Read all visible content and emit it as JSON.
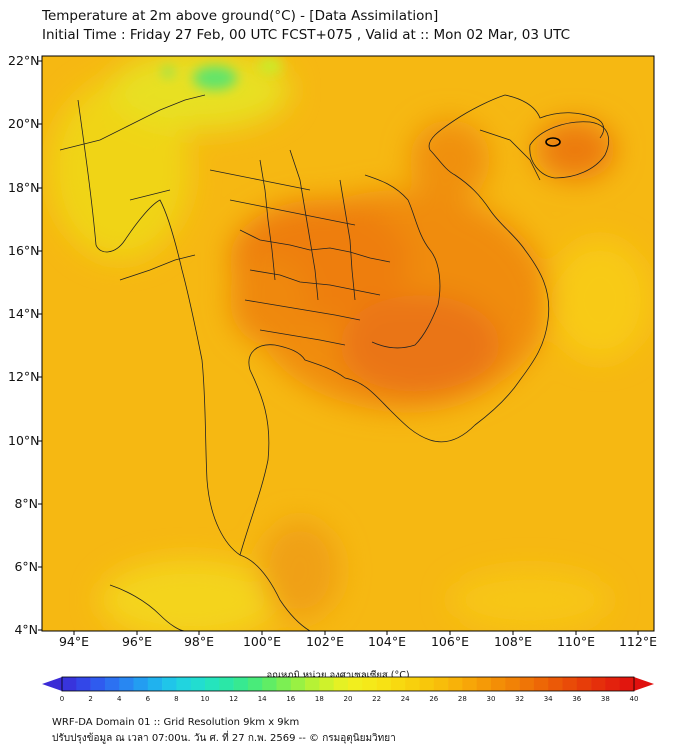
{
  "title": {
    "line1": "Temperature at 2m above ground(°C) - [Data Assimilation]",
    "line2": "Initial Time : Friday 27 Feb, 00 UTC FCST+075 , Valid at :: Mon 02 Mar, 03 UTC"
  },
  "map": {
    "lat_labels": [
      "22°N",
      "20°N",
      "18°N",
      "16°N",
      "14°N",
      "12°N",
      "10°N",
      "8°N",
      "6°N",
      "4°N"
    ],
    "lon_labels": [
      "94°E",
      "96°E",
      "98°E",
      "100°E",
      "102°E",
      "104°E",
      "106°E",
      "108°E",
      "110°E",
      "112°E"
    ],
    "lat_range": [
      4,
      22.2
    ],
    "lon_range": [
      93,
      112.5
    ]
  },
  "colorbar": {
    "title": "อุณหภูมิ หน่วย องศาเซลเซียส (°C)",
    "ticks": [
      "0",
      "2",
      "4",
      "6",
      "8",
      "10",
      "12",
      "14",
      "16",
      "18",
      "20",
      "22",
      "24",
      "26",
      "28",
      "30",
      "32",
      "34",
      "36",
      "38",
      "40"
    ],
    "colors": [
      "#3b2bd6",
      "#3050ee",
      "#2a7cf2",
      "#20a8f0",
      "#20cfe6",
      "#22e2c8",
      "#2ee89c",
      "#52ec6e",
      "#8af04a",
      "#c4f22e",
      "#f0f020",
      "#f6e616",
      "#f8d40e",
      "#f8c20a",
      "#f8ac08",
      "#f49406",
      "#f07c06",
      "#ec6006",
      "#e84408",
      "#e4280c",
      "#e0100e"
    ]
  },
  "footer": {
    "line1": "WRF-DA Domain 01 :: Grid Resolution 9km x 9km",
    "line2": "ปรับปรุงข้อมูล ณ เวลา 07:00น. วัน ศ. ที่ 27 ก.พ. 2569 -- © กรมอุตุนิยมวิทยา"
  }
}
